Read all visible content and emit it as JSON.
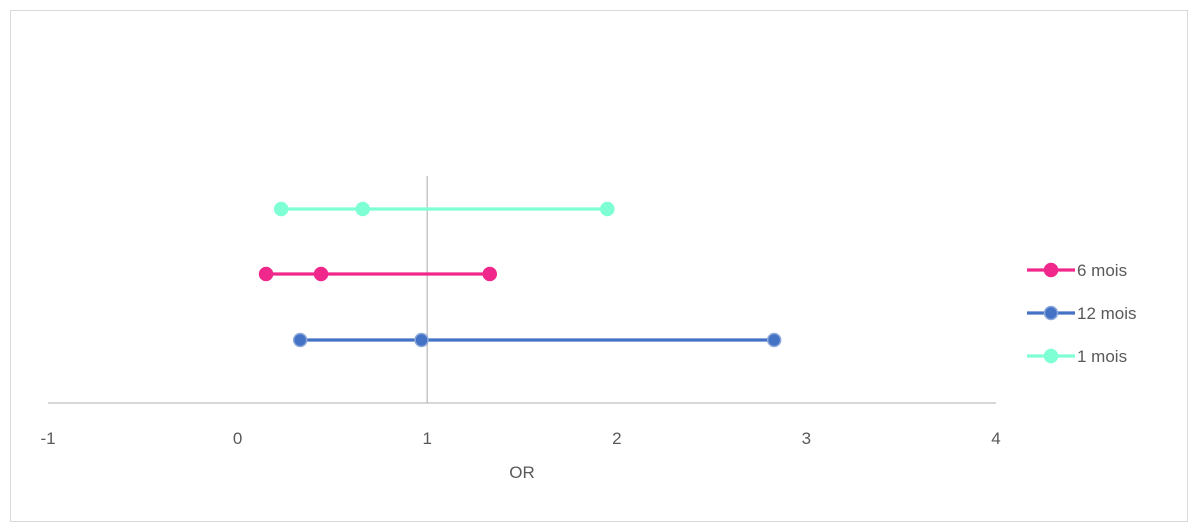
{
  "chart_data": {
    "type": "scatter",
    "title": "",
    "xlabel": "OR",
    "ylabel": "",
    "xlim": [
      -1,
      4
    ],
    "x_ticks": [
      "-1",
      "0",
      "1",
      "2",
      "3",
      "4"
    ],
    "reference_line_x": 1,
    "grid": false,
    "legend_position": "right",
    "series": [
      {
        "name": "6 mois",
        "color": "#f0288c",
        "points": [
          0.15,
          0.44,
          1.33
        ]
      },
      {
        "name": "12 mois",
        "color": "#4472c4",
        "points": [
          0.33,
          0.97,
          2.83
        ]
      },
      {
        "name": "1 mois",
        "color": "#7fffd4",
        "points": [
          0.23,
          0.66,
          1.95
        ]
      }
    ]
  }
}
